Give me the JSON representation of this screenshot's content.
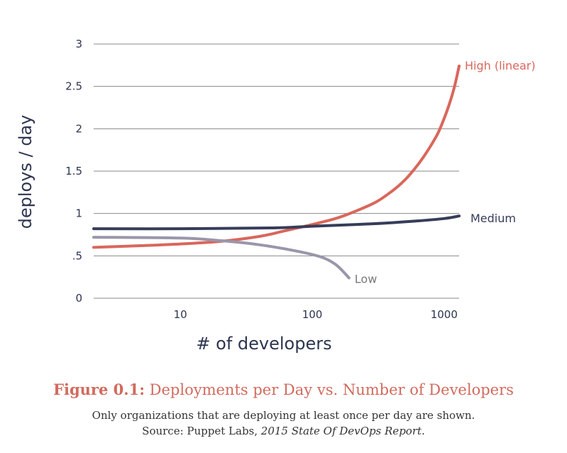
{
  "chart_data": {
    "type": "line",
    "xlabel": "# of developers",
    "ylabel": "deploys / day",
    "x_scale": "log",
    "xlim": [
      2.2,
      1300
    ],
    "ylim": [
      0,
      3
    ],
    "x_ticks": [
      {
        "value": 10,
        "label": "10"
      },
      {
        "value": 100,
        "label": "100"
      },
      {
        "value": 1000,
        "label": "1000"
      }
    ],
    "y_ticks": [
      {
        "value": 0,
        "label": "0"
      },
      {
        "value": 0.5,
        "label": ".5"
      },
      {
        "value": 1,
        "label": "1"
      },
      {
        "value": 1.5,
        "label": "1.5"
      },
      {
        "value": 2,
        "label": "2"
      },
      {
        "value": 2.5,
        "label": "2.5"
      },
      {
        "value": 3,
        "label": "3"
      }
    ],
    "grid": true,
    "legend": "inline labels at line ends",
    "series": [
      {
        "name": "High (linear)",
        "color": "#d9675c",
        "x": [
          2.2,
          5,
          10,
          20,
          40,
          60,
          100,
          150,
          200,
          300,
          400,
          500,
          600,
          700,
          800,
          900,
          1000,
          1100,
          1200,
          1300
        ],
        "y": [
          0.6,
          0.62,
          0.64,
          0.67,
          0.73,
          0.79,
          0.87,
          0.94,
          1.01,
          1.13,
          1.26,
          1.39,
          1.53,
          1.67,
          1.81,
          1.95,
          2.12,
          2.3,
          2.5,
          2.74
        ]
      },
      {
        "name": "Medium",
        "color": "#363d59",
        "x": [
          2.2,
          10,
          50,
          100,
          300,
          600,
          1000,
          1300
        ],
        "y": [
          0.82,
          0.82,
          0.83,
          0.85,
          0.88,
          0.91,
          0.94,
          0.97
        ]
      },
      {
        "name": "Low",
        "color": "#9a96aa",
        "x": [
          2.2,
          10,
          20,
          40,
          80,
          120,
          150,
          175,
          190
        ],
        "y": [
          0.72,
          0.71,
          0.68,
          0.63,
          0.55,
          0.48,
          0.4,
          0.3,
          0.24
        ]
      }
    ]
  },
  "caption": {
    "figure_number": "Figure 0.1:",
    "title": "Deployments per Day vs. Number of Developers",
    "note": "Only organizations that are deploying at least once per day are shown.",
    "source_prefix": "Source: Puppet Labs,",
    "source_title": "2015 State Of DevOps Report",
    "source_suffix": "."
  }
}
